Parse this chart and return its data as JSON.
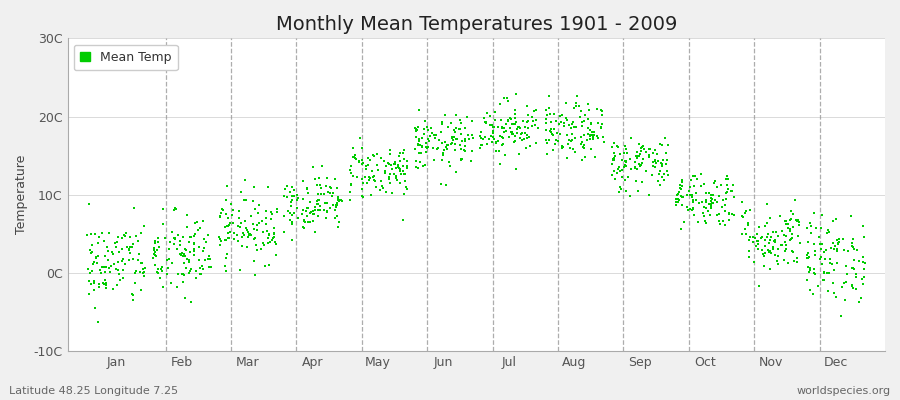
{
  "title": "Monthly Mean Temperatures 1901 - 2009",
  "ylabel": "Temperature",
  "xlabel": "",
  "ylim": [
    -10,
    30
  ],
  "xlim": [
    0,
    12.5
  ],
  "yticks": [
    -10,
    0,
    10,
    20,
    30
  ],
  "ytick_labels": [
    "-10C",
    "0C",
    "10C",
    "20C",
    "30C"
  ],
  "xtick_positions": [
    0.75,
    1.75,
    2.75,
    3.75,
    4.75,
    5.75,
    6.75,
    7.75,
    8.75,
    9.75,
    10.75,
    11.75
  ],
  "xtick_labels": [
    "Jan",
    "Feb",
    "Mar",
    "Apr",
    "May",
    "Jun",
    "Jul",
    "Aug",
    "Sep",
    "Oct",
    "Nov",
    "Dec"
  ],
  "dot_color": "#00cc00",
  "dot_size": 3,
  "background_color": "#f0f0f0",
  "plot_bg_color": "#ffffff",
  "vline_color": "#999999",
  "legend_label": "Mean Temp",
  "footer_left": "Latitude 48.25 Longitude 7.25",
  "footer_right": "worldspecies.org",
  "title_fontsize": 14,
  "label_fontsize": 9,
  "tick_fontsize": 9,
  "footer_fontsize": 8,
  "monthly_means": [
    1.2,
    2.2,
    5.8,
    9.0,
    13.0,
    16.5,
    18.5,
    18.0,
    14.0,
    9.5,
    4.5,
    1.8
  ],
  "monthly_stds": [
    2.8,
    2.8,
    2.2,
    1.8,
    1.8,
    1.8,
    1.8,
    1.8,
    1.8,
    1.8,
    2.2,
    2.8
  ],
  "years": 109,
  "seed": 42,
  "vline_positions": [
    1.5,
    2.5,
    3.5,
    4.5,
    5.5,
    6.5,
    7.5,
    8.5,
    9.5,
    10.5,
    11.5
  ]
}
